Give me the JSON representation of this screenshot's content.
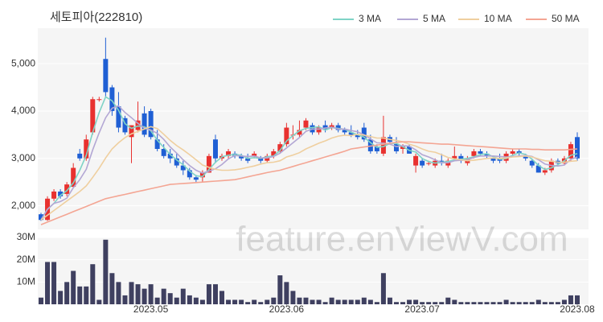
{
  "watermark": "feature.enViewV.com",
  "chart_data": [
    {
      "type": "candlestick",
      "title": "세토피아(222810)",
      "legend": "top-right",
      "up_color": "#e8312f",
      "down_color": "#1f5fd4",
      "open": [
        1820,
        1700,
        2150,
        2300,
        2250,
        2400,
        3100,
        3000,
        3550,
        4250,
        5100,
        4500,
        4100,
        3850,
        3450,
        3600,
        3950,
        4000,
        3400,
        3200,
        3100,
        3000,
        2850,
        2750,
        2600,
        2600,
        2700,
        3400,
        3000,
        3050,
        3100,
        3050,
        3000,
        3050,
        3000,
        2950,
        3050,
        3150,
        3300,
        3500,
        3500,
        3650,
        3700,
        3550,
        3700,
        3650,
        3700,
        3600,
        3550,
        3500,
        3650,
        3400,
        3250,
        3100,
        3450,
        3300,
        3200,
        3250,
        2850,
        2950,
        2900,
        2850,
        2950,
        2850,
        3000,
        3050,
        2900,
        3050,
        3150,
        3100,
        3000,
        3000,
        2950,
        3100,
        3150,
        3050,
        2950,
        2850,
        2700,
        2750,
        2950,
        2900,
        3000,
        3450
      ],
      "high": [
        1850,
        2200,
        2350,
        2350,
        2500,
        2900,
        3200,
        3500,
        4300,
        4300,
        5550,
        4550,
        4400,
        3900,
        3700,
        4200,
        4100,
        4050,
        3600,
        3300,
        3200,
        3100,
        2950,
        2800,
        2650,
        2750,
        3100,
        3500,
        3100,
        3200,
        3150,
        3100,
        3100,
        3150,
        3050,
        3100,
        3200,
        3350,
        3750,
        3700,
        3800,
        3850,
        3750,
        3700,
        3800,
        3750,
        3750,
        3650,
        3700,
        3600,
        3750,
        3500,
        3300,
        3900,
        3500,
        3450,
        3300,
        3300,
        3100,
        3000,
        2950,
        3000,
        3100,
        3000,
        3250,
        3100,
        3050,
        3200,
        3200,
        3150,
        3050,
        3100,
        3150,
        3200,
        3200,
        3100,
        3000,
        2900,
        2800,
        3000,
        3000,
        3050,
        3350,
        3550
      ],
      "low": [
        1680,
        1680,
        2100,
        2150,
        2200,
        2380,
        2950,
        2950,
        3500,
        4200,
        4300,
        3900,
        3550,
        3500,
        2900,
        3550,
        3450,
        3400,
        3150,
        3000,
        2900,
        2800,
        2650,
        2550,
        2500,
        2500,
        2700,
        2900,
        2950,
        3000,
        3000,
        2950,
        2900,
        3000,
        2900,
        2900,
        3000,
        3100,
        3250,
        3400,
        3450,
        3600,
        3500,
        3500,
        3550,
        3600,
        3550,
        3500,
        3450,
        3400,
        3350,
        3100,
        3100,
        3050,
        3300,
        3100,
        3100,
        3100,
        2700,
        2800,
        2850,
        2800,
        2850,
        2800,
        2950,
        2900,
        2850,
        3000,
        3050,
        3000,
        2900,
        2900,
        2900,
        3050,
        3050,
        2950,
        2800,
        2700,
        2650,
        2700,
        2850,
        2850,
        2950,
        2950
      ],
      "close": [
        1700,
        2150,
        2300,
        2200,
        2450,
        2800,
        3000,
        3400,
        4250,
        4250,
        4400,
        4000,
        3650,
        3550,
        3700,
        3800,
        3500,
        3450,
        3200,
        3050,
        3000,
        2850,
        2750,
        2600,
        2550,
        2700,
        3050,
        3000,
        3050,
        3150,
        3050,
        3000,
        2950,
        3100,
        2950,
        3050,
        3150,
        3300,
        3650,
        3500,
        3600,
        3800,
        3550,
        3650,
        3600,
        3700,
        3600,
        3550,
        3500,
        3450,
        3400,
        3150,
        3150,
        3450,
        3350,
        3150,
        3250,
        3100,
        3050,
        2850,
        2900,
        2950,
        2900,
        2950,
        3050,
        2950,
        3000,
        3150,
        3100,
        3050,
        2950,
        2950,
        3100,
        3150,
        3100,
        3000,
        2850,
        2700,
        2750,
        2950,
        2900,
        3000,
        3300,
        3000
      ],
      "series": [
        {
          "name": "3 MA",
          "color": "#7fd3c6",
          "values": [
            1700,
            1925,
            2050,
            2217,
            2317,
            2483,
            2750,
            3067,
            3550,
            3967,
            4300,
            4217,
            4017,
            3733,
            3633,
            3683,
            3667,
            3583,
            3383,
            3233,
            3083,
            2967,
            2867,
            2733,
            2633,
            2617,
            2767,
            2917,
            3033,
            3067,
            3083,
            3067,
            3000,
            3017,
            3000,
            3033,
            3050,
            3167,
            3367,
            3483,
            3583,
            3633,
            3650,
            3667,
            3600,
            3650,
            3633,
            3617,
            3550,
            3500,
            3450,
            3333,
            3233,
            3250,
            3317,
            3317,
            3250,
            3167,
            3133,
            3000,
            2933,
            2900,
            2917,
            2933,
            2967,
            2983,
            3000,
            3033,
            3083,
            3100,
            3033,
            2983,
            3000,
            3067,
            3117,
            3083,
            2983,
            2850,
            2767,
            2800,
            2867,
            2950,
            3067,
            3100
          ]
        },
        {
          "name": "5 MA",
          "color": "#b3a7d4",
          "values": [
            1700,
            1925,
            2050,
            2088,
            2160,
            2380,
            2550,
            2770,
            3180,
            3540,
            3860,
            4060,
            4110,
            3970,
            3860,
            3740,
            3640,
            3600,
            3530,
            3400,
            3240,
            3110,
            2970,
            2850,
            2750,
            2690,
            2730,
            2780,
            2870,
            2990,
            3060,
            3050,
            3040,
            3050,
            3010,
            3010,
            3040,
            3110,
            3220,
            3330,
            3440,
            3570,
            3620,
            3620,
            3640,
            3660,
            3620,
            3620,
            3590,
            3560,
            3500,
            3410,
            3330,
            3320,
            3300,
            3250,
            3270,
            3260,
            3180,
            3080,
            3030,
            2970,
            2910,
            2910,
            2950,
            2960,
            2970,
            3020,
            3050,
            3050,
            3050,
            3040,
            3030,
            3040,
            3050,
            3060,
            3040,
            2970,
            2880,
            2850,
            2840,
            2860,
            2980,
            3030
          ]
        },
        {
          "name": "10 MA",
          "color": "#efcf9f",
          "values": [
            1700,
            1800,
            1900,
            2000,
            2100,
            2200,
            2300,
            2420,
            2600,
            2790,
            3010,
            3200,
            3330,
            3440,
            3520,
            3570,
            3620,
            3670,
            3630,
            3510,
            3380,
            3270,
            3180,
            3080,
            2970,
            2860,
            2810,
            2770,
            2750,
            2750,
            2760,
            2780,
            2810,
            2840,
            2880,
            2910,
            2920,
            2950,
            3030,
            3070,
            3120,
            3200,
            3260,
            3320,
            3370,
            3430,
            3470,
            3490,
            3480,
            3510,
            3490,
            3460,
            3430,
            3430,
            3400,
            3380,
            3350,
            3300,
            3260,
            3200,
            3150,
            3130,
            3080,
            3020,
            2990,
            2970,
            2950,
            2960,
            2980,
            3000,
            3010,
            3000,
            3010,
            3030,
            3040,
            3050,
            3030,
            2990,
            2950,
            2940,
            2920,
            2920,
            2940,
            2950
          ]
        },
        {
          "name": "50 MA",
          "color": "#f4a593",
          "values": [
            1600,
            1655,
            1710,
            1765,
            1820,
            1875,
            1930,
            1985,
            2040,
            2095,
            2150,
            2180,
            2210,
            2240,
            2270,
            2300,
            2330,
            2360,
            2390,
            2420,
            2450,
            2460,
            2470,
            2480,
            2490,
            2500,
            2510,
            2520,
            2530,
            2540,
            2550,
            2580,
            2610,
            2640,
            2670,
            2700,
            2725,
            2750,
            2790,
            2830,
            2870,
            2910,
            2950,
            2990,
            3030,
            3070,
            3110,
            3150,
            3200,
            3220,
            3240,
            3260,
            3280,
            3300,
            3320,
            3340,
            3350,
            3350,
            3340,
            3330,
            3320,
            3310,
            3300,
            3300,
            3290,
            3280,
            3270,
            3260,
            3250,
            3240,
            3230,
            3220,
            3210,
            3200,
            3200,
            3200,
            3190,
            3190,
            3180,
            3180,
            3180,
            3180,
            3190,
            3200
          ]
        }
      ],
      "ylim": [
        1500,
        5750
      ],
      "yticks": [
        {
          "value": 2000,
          "label": "2,000"
        },
        {
          "value": 3000,
          "label": "3,000"
        },
        {
          "value": 4000,
          "label": "4,000"
        },
        {
          "value": 5000,
          "label": "5,000"
        }
      ]
    },
    {
      "type": "bar",
      "color": "#3f4060",
      "categories": [
        null,
        null,
        null,
        null,
        null,
        null,
        null,
        null,
        null,
        null,
        null,
        null,
        null,
        null,
        null,
        null,
        null,
        "2023.05",
        null,
        null,
        null,
        null,
        null,
        null,
        null,
        null,
        null,
        null,
        null,
        null,
        null,
        null,
        null,
        null,
        null,
        null,
        null,
        null,
        "2023.06",
        null,
        null,
        null,
        null,
        null,
        null,
        null,
        null,
        null,
        null,
        null,
        null,
        null,
        null,
        null,
        null,
        null,
        null,
        null,
        null,
        "2023.07",
        null,
        null,
        null,
        null,
        null,
        null,
        null,
        null,
        null,
        null,
        null,
        null,
        null,
        null,
        null,
        null,
        null,
        null,
        null,
        null,
        null,
        null,
        null,
        "2023.08"
      ],
      "values": [
        3000000,
        19000000,
        19000000,
        6000000,
        10000000,
        15000000,
        8000000,
        8000000,
        18000000,
        2000000,
        29000000,
        14000000,
        10000000,
        4000000,
        10000000,
        9000000,
        7000000,
        9000000,
        3000000,
        7000000,
        5000000,
        3000000,
        7000000,
        4000000,
        3000000,
        2000000,
        9000000,
        9000000,
        6000000,
        2000000,
        2000000,
        2000000,
        1000000,
        2000000,
        1000000,
        2000000,
        3000000,
        13000000,
        10000000,
        6000000,
        3000000,
        3000000,
        2000000,
        2000000,
        1000000,
        3000000,
        2000000,
        2000000,
        2000000,
        2000000,
        3000000,
        2000000,
        1000000,
        14000000,
        3000000,
        1000000,
        1000000,
        2000000,
        2000000,
        1000000,
        1000000,
        1000000,
        1000000,
        3000000,
        2000000,
        1000000,
        1000000,
        1000000,
        1000000,
        1000000,
        1000000,
        1000000,
        2000000,
        1000000,
        1000000,
        1000000,
        1000000,
        2000000,
        1000000,
        1000000,
        1000000,
        2000000,
        4000000,
        4000000
      ],
      "ylim": [
        0,
        30000000
      ],
      "yticks": [
        {
          "value": 10000000,
          "label": "10M"
        },
        {
          "value": 20000000,
          "label": "20M"
        },
        {
          "value": 30000000,
          "label": "30M"
        }
      ]
    }
  ]
}
